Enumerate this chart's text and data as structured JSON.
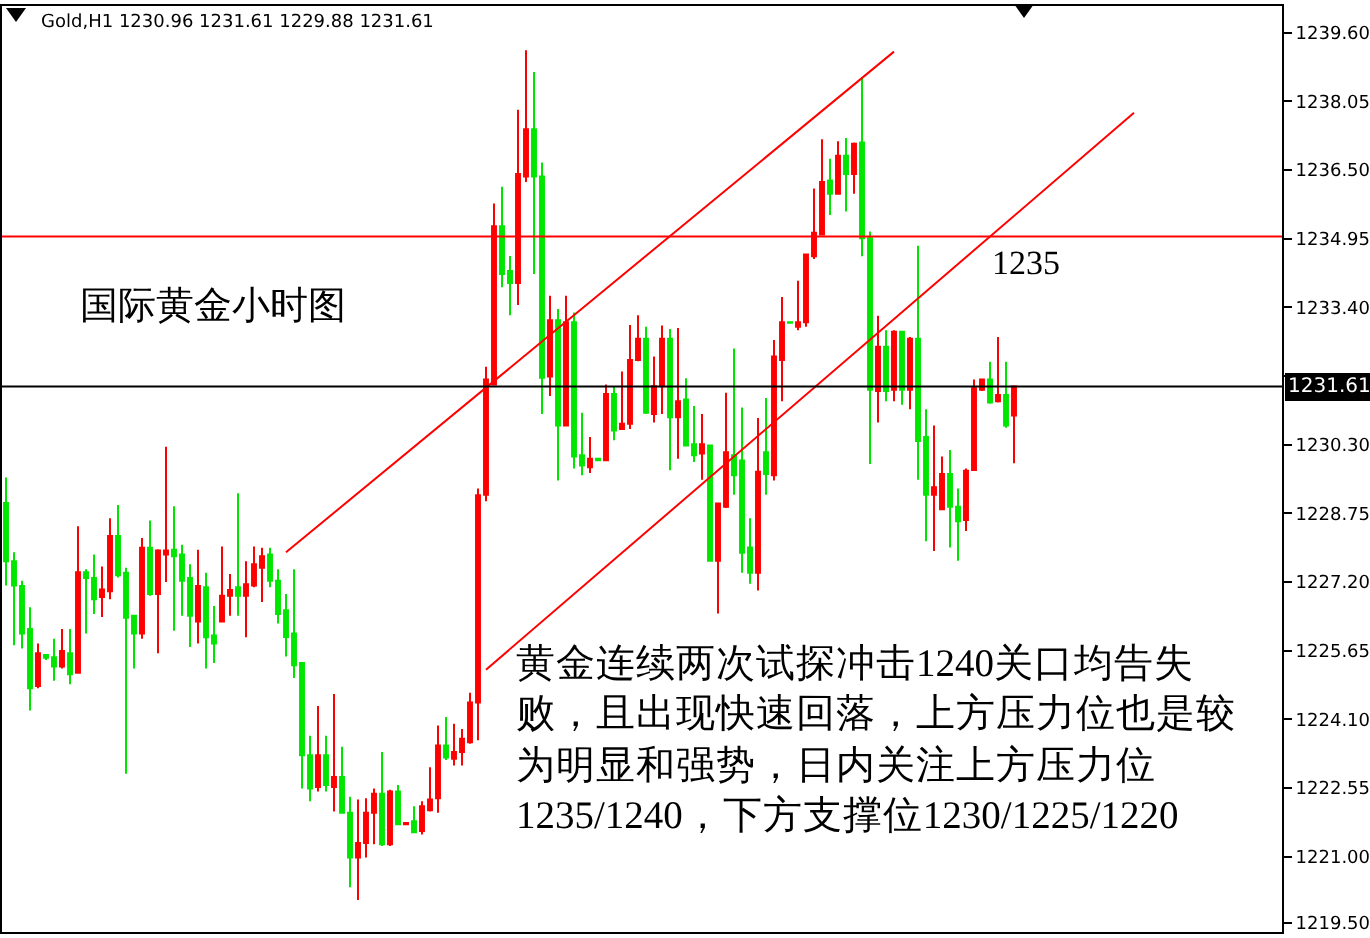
{
  "chart_data": {
    "type": "candlestick",
    "title": "Gold,H1 1230.96 1231.61 1229.88 1231.61",
    "categories": [
      null,
      null,
      null,
      null,
      null,
      null,
      null,
      null,
      null,
      null,
      null,
      null,
      null,
      null,
      null,
      null,
      null,
      null,
      null,
      null,
      null,
      null,
      null,
      null,
      null,
      null,
      null,
      null,
      null,
      null,
      null,
      null,
      null,
      null,
      null,
      null,
      null,
      null,
      null,
      null,
      null,
      null,
      null,
      null,
      null,
      null,
      null,
      null,
      null,
      null,
      null,
      null,
      null,
      null,
      null,
      null,
      null,
      null,
      null,
      null,
      null,
      null,
      null,
      null,
      null,
      null,
      null,
      null,
      null,
      null,
      null,
      null,
      null,
      null,
      null,
      null,
      null,
      null,
      null,
      null,
      null,
      null,
      null,
      null,
      null,
      null,
      null,
      null,
      null,
      null,
      null,
      null,
      null,
      null,
      null,
      null,
      null,
      null,
      null,
      null,
      null,
      null,
      null,
      null,
      null,
      null,
      null,
      null,
      null,
      null,
      null,
      null,
      null,
      null,
      null,
      null,
      null,
      null,
      null,
      null,
      null,
      null,
      null,
      null,
      null,
      null,
      null,
      null,
      null,
      null,
      null,
      null,
      null,
      null,
      null,
      null,
      null,
      null,
      null,
      null,
      null,
      null,
      null,
      null,
      null,
      null,
      null,
      null,
      null,
      null,
      null,
      null,
      null,
      null,
      null,
      null,
      null,
      null,
      null,
      null
    ],
    "colors": [
      "#00e600",
      "#00e600",
      "#00e600",
      "#00e600",
      "#ff0000",
      "#00e600",
      "#00e600",
      "#ff0000",
      "#00e600",
      "#ff0000",
      "#00e600",
      "#00e600",
      "#ff0000",
      "#ff0000",
      "#00e600",
      "#00e600",
      "#00e600",
      "#ff0000",
      "#00e600",
      "#ff0000",
      "#ff0000",
      "#00e600",
      "#00e600",
      "#00e600",
      "#ff0000",
      "#00e600",
      "#00e600",
      "#ff0000",
      "#ff0000",
      "#00e600",
      "#ff0000",
      "#ff0000",
      "#ff0000",
      "#00e600",
      "#00e600",
      "#00e600",
      "#00e600",
      "#00e600",
      "#00e600",
      "#ff0000",
      "#00e600",
      "#ff0000",
      "#00e600",
      "#00e600",
      "#ff0000",
      "#ff0000",
      "#ff0000",
      "#00e600",
      "#ff0000",
      "#00e600",
      "#ff0000",
      "#00e600",
      "#ff0000",
      "#ff0000",
      "#ff0000",
      "#00e600",
      "#ff0000",
      "#ff0000",
      "#ff0000",
      "#ff0000",
      "#ff0000",
      "#ff0000",
      "#00e600",
      "#00e600",
      "#ff0000",
      "#ff0000",
      "#00e600",
      "#00e600",
      "#ff0000",
      "#00e600",
      "#ff0000",
      "#00e600",
      "#00e600",
      "#ff0000",
      "#00e600",
      "#ff0000",
      "#00e600",
      "#ff0000",
      "#ff0000",
      "#ff0000",
      "#00e600",
      "#ff0000",
      "#ff0000",
      "#00e600",
      "#ff0000",
      "#00e600",
      "#00e600",
      "#ff0000",
      "#00e600",
      "#ff0000",
      "#ff0000",
      "#00e600",
      "#00e600",
      "#00e600",
      "#ff0000",
      "#00e600",
      "#ff0000",
      "#ff0000",
      "#00e600",
      "#ff0000",
      "#ff0000",
      "#ff0000",
      "#ff0000",
      "#00e600",
      "#ff0000",
      "#00e600",
      "#ff0000",
      "#00e600",
      "#00e600",
      "#ff0000",
      "#00e600",
      "#ff0000",
      "#00e600",
      "#ff0000",
      "#00e600",
      "#00e600",
      "#ff0000",
      "#ff0000",
      "#00e600",
      "#00e600",
      "#ff0000",
      "#ff0000",
      "#ff0000",
      "#00e600",
      "#ff0000",
      "#00e600",
      "#ff0000",
      null,
      null,
      null,
      null,
      null,
      null,
      null,
      null,
      null,
      null,
      null,
      null,
      null,
      null,
      null,
      null,
      null,
      null,
      null,
      null,
      null,
      null,
      null,
      null,
      null,
      null,
      null,
      null,
      null,
      null,
      null,
      null,
      null
    ],
    "ohlc": [
      [
        1228.98,
        1229.56,
        1227.12,
        1227.67
      ],
      [
        1227.67,
        1227.87,
        1225.77,
        1227.12
      ],
      [
        1227.11,
        1227.23,
        1225.7,
        1226.04
      ],
      [
        1226.14,
        1226.63,
        1224.3,
        1224.8
      ],
      [
        1224.85,
        1225.81,
        1224.8,
        1225.59
      ],
      [
        1225.55,
        1225.55,
        1225.44,
        1225.49
      ],
      [
        1225.5,
        1225.92,
        1224.97,
        1225.29
      ],
      [
        1225.29,
        1226.14,
        1225.25,
        1225.64
      ],
      [
        1225.59,
        1226.14,
        1224.89,
        1225.12
      ],
      [
        1225.15,
        1228.46,
        1225.15,
        1227.42
      ],
      [
        1227.42,
        1227.49,
        1226.04,
        1227.29
      ],
      [
        1227.29,
        1227.82,
        1226.48,
        1226.81
      ],
      [
        1226.86,
        1227.55,
        1226.41,
        1227.03
      ],
      [
        1226.99,
        1228.64,
        1226.81,
        1228.24
      ],
      [
        1228.24,
        1228.94,
        1227.3,
        1227.35
      ],
      [
        1227.41,
        1227.52,
        1222.87,
        1226.39
      ],
      [
        1226.44,
        1226.44,
        1225.25,
        1226.04
      ],
      [
        1226.04,
        1228.19,
        1225.92,
        1227.97
      ],
      [
        1227.97,
        1228.59,
        1226.89,
        1226.93
      ],
      [
        1226.93,
        1227.94,
        1225.59,
        1227.91
      ],
      [
        1227.82,
        1230.25,
        1227.2,
        1227.91
      ],
      [
        1227.93,
        1228.91,
        1226.1,
        1227.78
      ],
      [
        1227.82,
        1228.04,
        1226.44,
        1227.23
      ],
      [
        1227.29,
        1227.6,
        1225.73,
        1226.44
      ],
      [
        1226.31,
        1227.93,
        1225.81,
        1227.11
      ],
      [
        1227.08,
        1227.41,
        1225.25,
        1225.95
      ],
      [
        1225.99,
        1226.66,
        1225.37,
        1225.81
      ],
      [
        1226.31,
        1228.0,
        1226.31,
        1226.89
      ],
      [
        1226.89,
        1227.38,
        1226.44,
        1227.02
      ],
      [
        1227.08,
        1229.2,
        1226.44,
        1226.89
      ],
      [
        1226.89,
        1227.67,
        1225.95,
        1227.15
      ],
      [
        1227.12,
        1228.0,
        1227.08,
        1227.6
      ],
      [
        1227.52,
        1227.97,
        1226.75,
        1227.78
      ],
      [
        1227.82,
        1227.97,
        1227.08,
        1227.23
      ],
      [
        1227.23,
        1227.49,
        1226.26,
        1226.48
      ],
      [
        1226.56,
        1226.93,
        1225.52,
        1225.96
      ],
      [
        1226.04,
        1227.49,
        1225.03,
        1225.32
      ],
      [
        1225.37,
        1225.37,
        1222.54,
        1223.29
      ],
      [
        1223.29,
        1223.73,
        1222.25,
        1222.54
      ],
      [
        1222.57,
        1224.4,
        1222.47,
        1223.29
      ],
      [
        1223.29,
        1223.73,
        1222.47,
        1222.62
      ],
      [
        1222.57,
        1224.67,
        1222.02,
        1222.8
      ],
      [
        1222.8,
        1223.48,
        1221.99,
        1221.99
      ],
      [
        1221.99,
        1222.35,
        1220.31,
        1220.98
      ],
      [
        1220.98,
        1222.29,
        1220.02,
        1221.31
      ],
      [
        1221.31,
        1222.32,
        1220.98,
        1221.99
      ],
      [
        1221.99,
        1222.54,
        1221.28,
        1222.42
      ],
      [
        1222.42,
        1223.36,
        1221.24,
        1221.28
      ],
      [
        1221.28,
        1222.51,
        1221.24,
        1222.47
      ],
      [
        1222.47,
        1222.62,
        1221.73,
        1221.73
      ],
      [
        1221.73,
        1221.76,
        1221.73,
        1221.76
      ],
      [
        1221.8,
        1222.14,
        1221.55,
        1221.55
      ],
      [
        1221.58,
        1222.25,
        1221.5,
        1222.14
      ],
      [
        1222.05,
        1223.02,
        1222.02,
        1222.29
      ],
      [
        1222.32,
        1223.96,
        1221.99,
        1223.51
      ],
      [
        1223.51,
        1224.15,
        1223.18,
        1223.24
      ],
      [
        1223.21,
        1224.0,
        1223.06,
        1223.36
      ],
      [
        1223.36,
        1223.88,
        1223.06,
        1223.66
      ],
      [
        1223.58,
        1224.7,
        1223.55,
        1224.48
      ],
      [
        1224.48,
        1229.31,
        1223.63,
        1229.16
      ],
      [
        1229.17,
        1232.06,
        1229.02,
        1231.77
      ],
      [
        1231.66,
        1235.74,
        1231.66,
        1235.23
      ],
      [
        1235.23,
        1236.12,
        1233.85,
        1234.15
      ],
      [
        1234.22,
        1234.56,
        1233.22,
        1233.95
      ],
      [
        1233.95,
        1237.86,
        1233.45,
        1236.41
      ],
      [
        1236.35,
        1239.2,
        1236.23,
        1237.42
      ],
      [
        1237.42,
        1238.71,
        1234.15,
        1236.35
      ],
      [
        1236.35,
        1236.67,
        1230.99,
        1231.81
      ],
      [
        1231.84,
        1233.66,
        1231.4,
        1233.11
      ],
      [
        1233.11,
        1233.36,
        1229.49,
        1230.73
      ],
      [
        1230.73,
        1233.66,
        1230.73,
        1233.06
      ],
      [
        1233.06,
        1233.28,
        1229.76,
        1230.03
      ],
      [
        1230.06,
        1231.02,
        1229.61,
        1229.83
      ],
      [
        1229.79,
        1230.47,
        1229.66,
        1229.98
      ],
      [
        1229.98,
        1229.98,
        1229.95,
        1229.95
      ],
      [
        1229.95,
        1231.66,
        1229.95,
        1231.44
      ],
      [
        1231.44,
        1231.62,
        1230.4,
        1230.62
      ],
      [
        1230.65,
        1231.95,
        1230.65,
        1230.77
      ],
      [
        1230.77,
        1233.0,
        1230.65,
        1232.21
      ],
      [
        1232.21,
        1233.22,
        1232.18,
        1232.69
      ],
      [
        1232.69,
        1232.96,
        1230.99,
        1231.02
      ],
      [
        1230.99,
        1232.29,
        1230.8,
        1231.62
      ],
      [
        1231.62,
        1232.99,
        1230.99,
        1232.69
      ],
      [
        1232.69,
        1232.91,
        1229.72,
        1230.92
      ],
      [
        1230.92,
        1232.93,
        1229.98,
        1231.28
      ],
      [
        1231.32,
        1231.8,
        1230.28,
        1230.28
      ],
      [
        1230.31,
        1231.17,
        1229.91,
        1230.06
      ],
      [
        1230.1,
        1230.99,
        1229.51,
        1230.31
      ],
      [
        1230.28,
        1230.28,
        1227.68,
        1227.68
      ],
      [
        1227.68,
        1228.97,
        1226.49,
        1228.97
      ],
      [
        1228.9,
        1231.47,
        1228.87,
        1230.13
      ],
      [
        1230.06,
        1232.47,
        1229.17,
        1229.61
      ],
      [
        1229.94,
        1231.14,
        1227.41,
        1227.86
      ],
      [
        1227.98,
        1228.64,
        1227.16,
        1227.41
      ],
      [
        1227.41,
        1230.9,
        1227.01,
        1229.69
      ],
      [
        1230.13,
        1231.35,
        1229.17,
        1229.64
      ],
      [
        1229.61,
        1232.66,
        1229.49,
        1232.29
      ],
      [
        1232.21,
        1233.63,
        1231.28,
        1233.06
      ],
      [
        1233.06,
        1233.06,
        1233.05,
        1233.05
      ],
      [
        1232.96,
        1234.0,
        1232.88,
        1233.06
      ],
      [
        1233.06,
        1234.59,
        1232.96,
        1234.59
      ],
      [
        1234.55,
        1236.08,
        1234.49,
        1235.08
      ],
      [
        1235.04,
        1237.19,
        1235.04,
        1236.23
      ],
      [
        1236.26,
        1236.75,
        1235.48,
        1235.96
      ],
      [
        1235.96,
        1237.15,
        1235.96,
        1236.82
      ],
      [
        1236.82,
        1237.22,
        1235.56,
        1236.41
      ],
      [
        1236.41,
        1237.12,
        1235.96,
        1237.09
      ],
      [
        1237.12,
        1238.58,
        1234.55,
        1234.96
      ],
      [
        1234.96,
        1235.11,
        1229.86,
        1231.54
      ],
      [
        1231.51,
        1233.21,
        1230.8,
        1232.51
      ],
      [
        1232.51,
        1232.88,
        1231.28,
        1231.51
      ],
      [
        1231.54,
        1232.88,
        1231.28,
        1232.85
      ],
      [
        1232.85,
        1232.85,
        1231.2,
        1231.54
      ],
      [
        1231.54,
        1232.73,
        1231.1,
        1232.69
      ],
      [
        1232.69,
        1234.79,
        1229.51,
        1230.38
      ],
      [
        1230.47,
        1231.1,
        1228.12,
        1229.17
      ],
      [
        1229.17,
        1230.73,
        1227.9,
        1229.34
      ],
      [
        1228.84,
        1230.03,
        1228.84,
        1229.64
      ],
      [
        1229.64,
        1230.18,
        1227.98,
        1228.9
      ],
      [
        1228.9,
        1229.31,
        1227.68,
        1228.57
      ],
      [
        1228.6,
        1229.76,
        1228.35,
        1229.71
      ],
      [
        1229.73,
        1231.77,
        1229.73,
        1231.57
      ],
      [
        1231.54,
        1231.77,
        1231.51,
        1231.77
      ],
      [
        1231.77,
        1232.17,
        1231.22,
        1231.25
      ],
      [
        1231.28,
        1232.73,
        1231.25,
        1231.42
      ],
      [
        1231.42,
        1232.17,
        1230.68,
        1230.73
      ],
      [
        1230.96,
        1231.61,
        1229.88,
        1231.61
      ],
      null,
      null,
      null,
      null,
      null,
      null,
      null,
      null,
      null,
      null,
      null,
      null,
      null,
      null,
      null,
      null,
      null,
      null,
      null,
      null,
      null,
      null,
      null,
      null,
      null,
      null,
      null,
      null,
      null,
      null,
      null,
      null,
      null
    ],
    "series": [
      {
        "type": "line",
        "color": "#ff0000",
        "values": [
          null,
          null,
          null,
          null,
          null,
          null,
          null,
          null,
          null,
          null,
          null,
          null,
          null,
          null,
          null,
          null,
          null,
          null,
          null,
          null,
          null,
          null,
          null,
          null,
          null,
          null,
          null,
          null,
          null,
          null,
          null,
          null,
          null,
          null,
          null,
          1227.87,
          null,
          null,
          null,
          null,
          null,
          null,
          null,
          null,
          null,
          null,
          null,
          null,
          null,
          null,
          null,
          null,
          null,
          null,
          null,
          null,
          null,
          null,
          null,
          null,
          null,
          null,
          null,
          null,
          null,
          null,
          null,
          null,
          null,
          null,
          null,
          null,
          null,
          null,
          null,
          null,
          null,
          null,
          null,
          null,
          null,
          null,
          null,
          null,
          null,
          null,
          null,
          null,
          null,
          null,
          null,
          null,
          null,
          null,
          null,
          null,
          null,
          null,
          null,
          null,
          null,
          null,
          null,
          null,
          null,
          null,
          null,
          null,
          null,
          null,
          null,
          1239.17,
          null,
          null,
          null,
          null,
          null,
          null,
          null,
          null,
          null,
          null,
          null,
          null,
          null,
          null,
          null,
          null,
          null,
          null,
          null,
          null,
          null,
          null,
          null,
          null,
          null,
          null,
          null,
          null,
          null,
          null,
          null,
          null,
          null,
          null,
          null,
          null,
          null,
          null,
          null,
          null,
          null,
          null,
          null,
          null,
          null,
          null,
          null,
          null
        ]
      },
      {
        "type": "line",
        "color": "#ff0000",
        "values": [
          null,
          null,
          null,
          null,
          null,
          null,
          null,
          null,
          null,
          null,
          null,
          null,
          null,
          null,
          null,
          null,
          null,
          null,
          null,
          null,
          null,
          null,
          null,
          null,
          null,
          null,
          null,
          null,
          null,
          null,
          null,
          null,
          null,
          null,
          null,
          null,
          null,
          null,
          null,
          null,
          null,
          null,
          null,
          null,
          null,
          null,
          null,
          null,
          null,
          null,
          null,
          null,
          null,
          null,
          null,
          null,
          null,
          null,
          null,
          null,
          1225.22,
          null,
          null,
          null,
          null,
          null,
          null,
          null,
          null,
          null,
          null,
          null,
          null,
          null,
          null,
          null,
          null,
          null,
          null,
          null,
          null,
          null,
          null,
          null,
          null,
          null,
          null,
          null,
          null,
          null,
          null,
          null,
          null,
          null,
          null,
          null,
          null,
          null,
          null,
          null,
          null,
          null,
          null,
          null,
          null,
          null,
          null,
          null,
          null,
          null,
          null,
          null,
          null,
          null,
          null,
          null,
          null,
          null,
          null,
          null,
          null,
          null,
          null,
          null,
          null,
          null,
          null,
          null,
          null,
          null,
          null,
          null,
          null,
          null,
          null,
          null,
          null,
          null,
          null,
          null,
          null,
          1237.79,
          null,
          null,
          null,
          null,
          null,
          null,
          null,
          null,
          null,
          null,
          null,
          null,
          null,
          null,
          null,
          null,
          null,
          null
        ]
      }
    ],
    "ref_lines": [
      {
        "axis": "y",
        "value": 1235,
        "label": "1235",
        "color": "#ff0000"
      },
      {
        "axis": "y",
        "value": 1231.61,
        "label": "1231.61",
        "color": "#000000"
      }
    ],
    "ylim": [
      1219.3,
      1240.2
    ],
    "yticks": [
      {
        "value": 1219.5,
        "label": "1219.50"
      },
      {
        "value": 1221,
        "label": "1221.00"
      },
      1222.55,
      {
        "value": 1224.1,
        "label": "1224.10"
      },
      1225.65,
      {
        "value": 1227.2,
        "label": "1227.20"
      },
      1228.75,
      {
        "value": 1230.3,
        "label": "1230.30"
      },
      {
        "value": 1231.85,
        "label": null
      },
      {
        "value": 1233.4,
        "label": "1233.40"
      },
      1234.95,
      {
        "value": 1236.5,
        "label": "1236.50"
      },
      1238.05,
      {
        "value": 1239.6,
        "label": "1239.60"
      }
    ],
    "annotations": [
      "国际黄金小时图",
      "黄金连续两次试探冲击1240关口均告失败，且出现快速回落，上方压力位也是较为明显和强势，日内关注上方压力位1235/1240，下方支撑位1230/1225/1220"
    ]
  }
}
